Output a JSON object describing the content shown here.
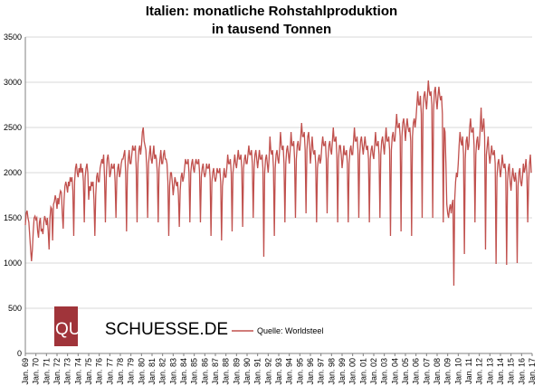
{
  "chart_data": {
    "type": "line",
    "title_line1": "Italien: monatliche Rohstahlproduktion",
    "title_line2": "in tausend Tonnen",
    "xlabel": "",
    "ylabel": "",
    "ylim": [
      0,
      3500
    ],
    "yticks": [
      "0",
      "500",
      "1000",
      "1500",
      "2000",
      "2500",
      "3000",
      "3500"
    ],
    "grid": true,
    "legend_position": "bottom-center",
    "series_color": "#c0504d",
    "xtick_labels": [
      "Jan. 69",
      "Jan. 70",
      "Jan. 71",
      "Jan. 72",
      "Jan. 73",
      "Jan. 74",
      "Jan. 75",
      "Jan. 76",
      "Jan. 77",
      "Jan. 78",
      "Jan. 79",
      "Jan. 80",
      "Jan. 81",
      "Jan. 82",
      "Jan. 83",
      "Jan. 84",
      "Jan. 85",
      "Jan. 86",
      "Jan. 87",
      "Jan. 88",
      "Jan. 89",
      "Jan. 90",
      "Jan. 91",
      "Jan. 92",
      "Jan. 93",
      "Jan. 94",
      "Jan. 95",
      "Jan. 96",
      "Jan. 97",
      "Jan. 98",
      "Jan. 99",
      "Jan. 00",
      "Jan. 01",
      "Jan. 02",
      "Jan. 03",
      "Jan. 04",
      "Jan. 05",
      "Jan. 06",
      "Jan. 07",
      "Jan. 08",
      "Jan. 09",
      "Jan. 10",
      "Jan. 11",
      "Jan. 12",
      "Jan. 13",
      "Jan. 14",
      "Jan. 15",
      "Jan. 16",
      "Jan. 17"
    ],
    "series": [
      {
        "name": "Quelle: Worldsteel",
        "x_start": "Jan. 69",
        "frequency": "monthly",
        "yearly": [
          {
            "year": 1969,
            "values": [
              1420,
              1550,
              1580,
              1500,
              1450,
              1300,
              1150,
              1020,
              1150,
              1350,
              1500,
              1520
            ]
          },
          {
            "year": 1970,
            "values": [
              1480,
              1500,
              1350,
              1280,
              1450,
              1500,
              1350,
              1380,
              1320,
              1450,
              1520,
              1480
            ]
          },
          {
            "year": 1971,
            "values": [
              1420,
              1500,
              1350,
              1150,
              1500,
              1620,
              1600,
              1250,
              1650,
              1680,
              1750,
              1700
            ]
          },
          {
            "year": 1972,
            "values": [
              1600,
              1720,
              1650,
              1750,
              1800,
              1780,
              1550,
              1380,
              1700,
              1850,
              1900,
              1850
            ]
          },
          {
            "year": 1973,
            "values": [
              1780,
              1900,
              1850,
              1950,
              1900,
              1950,
              1800,
              1300,
              1900,
              2050,
              2100,
              2000
            ]
          },
          {
            "year": 1974,
            "values": [
              1950,
              2050,
              2000,
              2100,
              2000,
              2050,
              1900,
              1450,
              1950,
              2050,
              2100,
              2000
            ]
          },
          {
            "year": 1975,
            "values": [
              1700,
              1850,
              1800,
              1900,
              1850,
              1900,
              1700,
              1300,
              1750,
              1950,
              2000,
              1900
            ]
          },
          {
            "year": 1976,
            "values": [
              1900,
              2050,
              2100,
              2150,
              2100,
              2200,
              1950,
              1450,
              1950,
              2150,
              2200,
              2100
            ]
          },
          {
            "year": 1977,
            "values": [
              1950,
              2000,
              2100,
              2050,
              2050,
              2100,
              1900,
              1500,
              1950,
              2050,
              2100,
              1950
            ]
          },
          {
            "year": 1978,
            "values": [
              2000,
              2100,
              2150,
              2150,
              2200,
              2250,
              2000,
              1350,
              2000,
              2150,
              2250,
              2100
            ]
          },
          {
            "year": 1979,
            "values": [
              2100,
              2200,
              2300,
              2250,
              2250,
              2300,
              2050,
              1450,
              2100,
              2250,
              2300,
              2200
            ]
          },
          {
            "year": 1980,
            "values": [
              2300,
              2450,
              2500,
              2350,
              2300,
              2250,
              2050,
              1500,
              2100,
              2200,
              2300,
              2150
            ]
          },
          {
            "year": 1981,
            "values": [
              2100,
              2200,
              2300,
              2150,
              2200,
              2150,
              2000,
              1450,
              2050,
              2150,
              2250,
              2100
            ]
          },
          {
            "year": 1982,
            "values": [
              2100,
              2200,
              2250,
              2150,
              2150,
              2100,
              1900,
              1300,
              1850,
              2000,
              2000,
              1900
            ]
          },
          {
            "year": 1983,
            "values": [
              1750,
              1850,
              1950,
              1900,
              1850,
              1900,
              1750,
              1400,
              1800,
              1950,
              2000,
              1900
            ]
          },
          {
            "year": 1984,
            "values": [
              1950,
              2050,
              2150,
              2100,
              2100,
              2150,
              2000,
              1450,
              2000,
              2100,
              2150,
              2050
            ]
          },
          {
            "year": 1985,
            "values": [
              2000,
              2100,
              2150,
              2100,
              2100,
              2150,
              2000,
              1450,
              1950,
              2050,
              2100,
              2000
            ]
          },
          {
            "year": 1986,
            "values": [
              1950,
              2000,
              2100,
              2050,
              2050,
              2100,
              1950,
              1300,
              1900,
              2000,
              2050,
              1950
            ]
          },
          {
            "year": 1987,
            "values": [
              1900,
              1950,
              2050,
              2000,
              2000,
              2050,
              1900,
              1250,
              1850,
              1950,
              2050,
              1950
            ]
          },
          {
            "year": 1988,
            "values": [
              1950,
              2050,
              2200,
              2100,
              2100,
              2150,
              2000,
              1350,
              2000,
              2100,
              2200,
              2100
            ]
          },
          {
            "year": 1989,
            "values": [
              2050,
              2150,
              2250,
              2150,
              2150,
              2200,
              2050,
              1400,
              2050,
              2150,
              2200,
              2100
            ]
          },
          {
            "year": 1990,
            "values": [
              2100,
              2200,
              2300,
              2200,
              2200,
              2250,
              2100,
              1500,
              2050,
              2200,
              2250,
              2150
            ]
          },
          {
            "year": 1991,
            "values": [
              2050,
              2150,
              2250,
              2150,
              2150,
              2200,
              2050,
              1070,
              2000,
              2150,
              2200,
              2100
            ]
          },
          {
            "year": 1992,
            "values": [
              2000,
              2150,
              2400,
              2250,
              2200,
              2250,
              2050,
              1300,
              2050,
              2200,
              2250,
              2150
            ]
          },
          {
            "year": 1993,
            "values": [
              2100,
              2250,
              2450,
              2300,
              2250,
              2300,
              2100,
              1450,
              2100,
              2250,
              2300,
              2200
            ]
          },
          {
            "year": 1994,
            "values": [
              2100,
              2250,
              2450,
              2300,
              2300,
              2350,
              2150,
              1500,
              2150,
              2300,
              2350,
              2250
            ]
          },
          {
            "year": 1995,
            "values": [
              2250,
              2400,
              2550,
              2400,
              2400,
              2450,
              2250,
              1550,
              2250,
              2400,
              2450,
              2300
            ]
          },
          {
            "year": 1996,
            "values": [
              2100,
              2250,
              2400,
              2250,
              2200,
              2250,
              2100,
              1450,
              2050,
              2150,
              2200,
              2100
            ]
          },
          {
            "year": 1997,
            "values": [
              2150,
              2300,
              2400,
              2300,
              2300,
              2350,
              2150,
              1550,
              2150,
              2300,
              2350,
              2250
            ]
          },
          {
            "year": 1998,
            "values": [
              2200,
              2350,
              2500,
              2350,
              2350,
              2400,
              2200,
              1450,
              2150,
              2300,
              2300,
              2200
            ]
          },
          {
            "year": 1999,
            "values": [
              2050,
              2150,
              2300,
              2200,
              2200,
              2250,
              2100,
              1450,
              2100,
              2250,
              2300,
              2200
            ]
          },
          {
            "year": 2000,
            "values": [
              2200,
              2350,
              2500,
              2350,
              2350,
              2400,
              2250,
              1500,
              2200,
              2350,
              2400,
              2300
            ]
          },
          {
            "year": 2001,
            "values": [
              2200,
              2300,
              2400,
              2300,
              2250,
              2300,
              2150,
              1450,
              2150,
              2250,
              2300,
              2200
            ]
          },
          {
            "year": 2002,
            "values": [
              2150,
              2300,
              2450,
              2300,
              2300,
              2350,
              2200,
              1500,
              2200,
              2350,
              2400,
              2300
            ]
          },
          {
            "year": 2003,
            "values": [
              2200,
              2350,
              2500,
              2350,
              2350,
              2400,
              2250,
              1300,
              2250,
              2400,
              2450,
              2350
            ]
          },
          {
            "year": 2004,
            "values": [
              2350,
              2500,
              2650,
              2500,
              2500,
              2550,
              2400,
              1350,
              2400,
              2550,
              2600,
              2500
            ]
          },
          {
            "year": 2005,
            "values": [
              2350,
              2500,
              2600,
              2500,
              2450,
              2500,
              2350,
              1300,
              2400,
              2550,
              2600,
              2500
            ]
          },
          {
            "year": 2006,
            "values": [
              2600,
              2750,
              2900,
              2750,
              2750,
              2850,
              2650,
              1500,
              2700,
              2850,
              2900,
              2800
            ]
          },
          {
            "year": 2007,
            "values": [
              2700,
              2850,
              3020,
              2900,
              2850,
              2900,
              2750,
              1500,
              2700,
              2900,
              2950,
              2800
            ]
          },
          {
            "year": 2008,
            "values": [
              2700,
              2850,
              2950,
              2850,
              2800,
              2850,
              2650,
              1450,
              2500,
              2450,
              2100,
              1650
            ]
          },
          {
            "year": 2009,
            "values": [
              1550,
              1500,
              1600,
              1650,
              1550,
              1650,
              1700,
              750,
              1700,
              1900,
              2000,
              1950
            ]
          },
          {
            "year": 2010,
            "values": [
              2100,
              2300,
              2450,
              2350,
              2300,
              2400,
              2200,
              1100,
              2150,
              2350,
              2400,
              2250
            ]
          },
          {
            "year": 2011,
            "values": [
              2300,
              2500,
              2600,
              2450,
              2450,
              2500,
              2300,
              1450,
              2200,
              2350,
              2400,
              2250
            ]
          },
          {
            "year": 2012,
            "values": [
              2300,
              2500,
              2720,
              2450,
              2500,
              2600,
              2400,
              1150,
              2200,
              2300,
              2400,
              2200
            ]
          },
          {
            "year": 2013,
            "values": [
              2100,
              2200,
              2300,
              2200,
              2200,
              2250,
              2100,
              990,
              1950,
              2100,
              2150,
              2050
            ]
          },
          {
            "year": 2014,
            "values": [
              1950,
              2050,
              2200,
              2100,
              2050,
              2100,
              2000,
              980,
              1900,
              2050,
              2100,
              1900
            ]
          },
          {
            "year": 2015,
            "values": [
              1800,
              1950,
              2050,
              1950,
              1900,
              2000,
              1900,
              1000,
              1850,
              2000,
              2050,
              1900
            ]
          },
          {
            "year": 2016,
            "values": [
              1850,
              1950,
              2100,
              2000,
              2050,
              2150,
              2000,
              1450,
              1900,
              2100,
              2200,
              2000
            ]
          }
        ]
      }
    ]
  },
  "logo": {
    "text_part1": "QUER",
    "text_part2": "SCHUESSE.DE",
    "badge_color": "#a0343a"
  }
}
